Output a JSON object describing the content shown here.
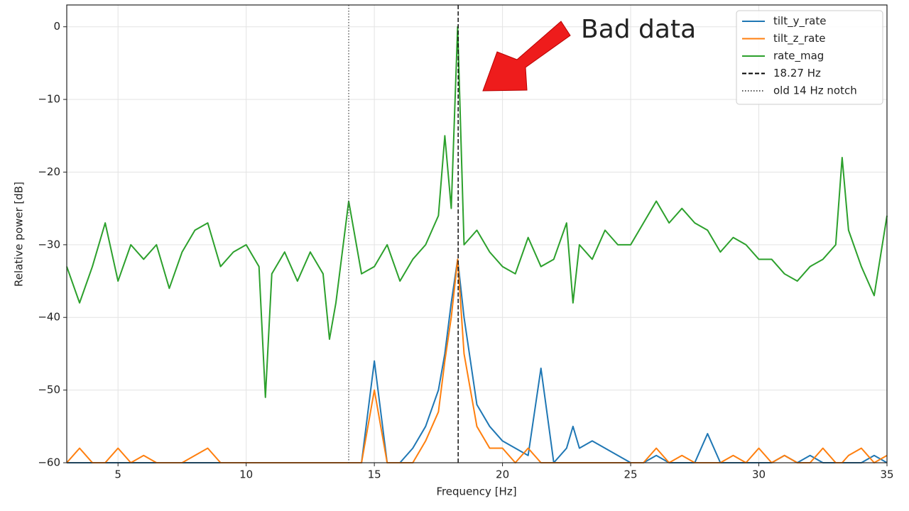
{
  "chart_data": {
    "type": "line",
    "xlabel": "Frequency [Hz]",
    "ylabel": "Relative power [dB]",
    "xlim": [
      3,
      35
    ],
    "ylim": [
      -60,
      3
    ],
    "xticks": [
      5,
      10,
      15,
      20,
      25,
      30,
      35
    ],
    "yticks": [
      0,
      {
        "value": -10,
        "label": "−10"
      },
      {
        "value": -20,
        "label": "−20"
      },
      {
        "value": -30,
        "label": "−30"
      },
      {
        "value": -40,
        "label": "−40"
      },
      {
        "value": -50,
        "label": "−50"
      },
      {
        "value": -60,
        "label": "−60"
      }
    ],
    "grid": true,
    "legend": "upper right",
    "x": [
      3,
      3.5,
      4,
      4.5,
      5,
      5.5,
      6,
      6.5,
      7,
      7.5,
      8,
      8.5,
      9,
      9.5,
      10,
      10.5,
      10.75,
      11,
      11.5,
      12,
      12.5,
      13,
      13.25,
      13.5,
      14,
      14.5,
      15,
      15.5,
      16,
      16.5,
      17,
      17.5,
      17.75,
      18,
      18.25,
      18.5,
      19,
      19.5,
      20,
      20.5,
      21,
      21.5,
      22,
      22.5,
      22.75,
      23,
      23.5,
      24,
      24.5,
      25,
      25.5,
      26,
      26.5,
      27,
      27.5,
      28,
      28.5,
      29,
      29.5,
      30,
      30.5,
      31,
      31.5,
      32,
      32.5,
      33,
      33.25,
      33.5,
      34,
      34.5,
      35
    ],
    "series": [
      {
        "name": "tilt_y_rate",
        "color": "#1f77b4",
        "values": [
          -60,
          -60,
          -60,
          -60,
          -60,
          -60,
          -60,
          -60,
          -60,
          -60,
          -60,
          -60,
          -60,
          -60,
          -60,
          -60,
          -60,
          -60,
          -60,
          -60,
          -60,
          -60,
          -60,
          -60,
          -60,
          -60,
          -46,
          -60,
          -60,
          -58,
          -55,
          -50,
          -45,
          -38,
          -32,
          -40,
          -52,
          -55,
          -57,
          -58,
          -59,
          -47,
          -60,
          -58,
          -55,
          -58,
          -57,
          -58,
          -59,
          -60,
          -60,
          -59,
          -60,
          -60,
          -60,
          -56,
          -60,
          -60,
          -60,
          -60,
          -60,
          -59,
          -60,
          -59,
          -60,
          -60,
          -60,
          -60,
          -60,
          -59,
          -60
        ]
      },
      {
        "name": "tilt_z_rate",
        "color": "#ff7f0e",
        "values": [
          -60,
          -58,
          -60,
          -60,
          -58,
          -60,
          -59,
          -60,
          -60,
          -60,
          -59,
          -58,
          -60,
          -60,
          -60,
          -60,
          -60,
          -60,
          -60,
          -60,
          -60,
          -60,
          -60,
          -60,
          -60,
          -60,
          -50,
          -60,
          -60,
          -60,
          -57,
          -53,
          -46,
          -40,
          -32,
          -45,
          -55,
          -58,
          -58,
          -60,
          -58,
          -60,
          -60,
          -60,
          -60,
          -60,
          -60,
          -60,
          -60,
          -60,
          -60,
          -58,
          -60,
          -59,
          -60,
          -60,
          -60,
          -59,
          -60,
          -58,
          -60,
          -59,
          -60,
          -60,
          -58,
          -60,
          -60,
          -59,
          -58,
          -60,
          -59
        ]
      },
      {
        "name": "rate_mag",
        "color": "#2ca02c",
        "values": [
          -33,
          -38,
          -33,
          -27,
          -35,
          -30,
          -32,
          -30,
          -36,
          -31,
          -28,
          -27,
          -33,
          -31,
          -30,
          -33,
          -51,
          -34,
          -31,
          -35,
          -31,
          -34,
          -43,
          -38,
          -24,
          -34,
          -33,
          -30,
          -35,
          -32,
          -30,
          -26,
          -15,
          -25,
          0,
          -30,
          -28,
          -31,
          -33,
          -34,
          -29,
          -33,
          -32,
          -27,
          -38,
          -30,
          -32,
          -28,
          -30,
          -30,
          -27,
          -24,
          -27,
          -25,
          -27,
          -28,
          -31,
          -29,
          -30,
          -32,
          -32,
          -34,
          -35,
          -33,
          -32,
          -30,
          -18,
          -28,
          -33,
          -37,
          -26
        ]
      }
    ],
    "vlines": [
      {
        "x": 18.27,
        "label": "18.27 Hz",
        "color": "#000000",
        "style": "dashed"
      },
      {
        "x": 14,
        "label": "old 14 Hz notch",
        "color": "#555555",
        "style": "dotted"
      }
    ],
    "annotation": {
      "text": "Bad data"
    }
  }
}
